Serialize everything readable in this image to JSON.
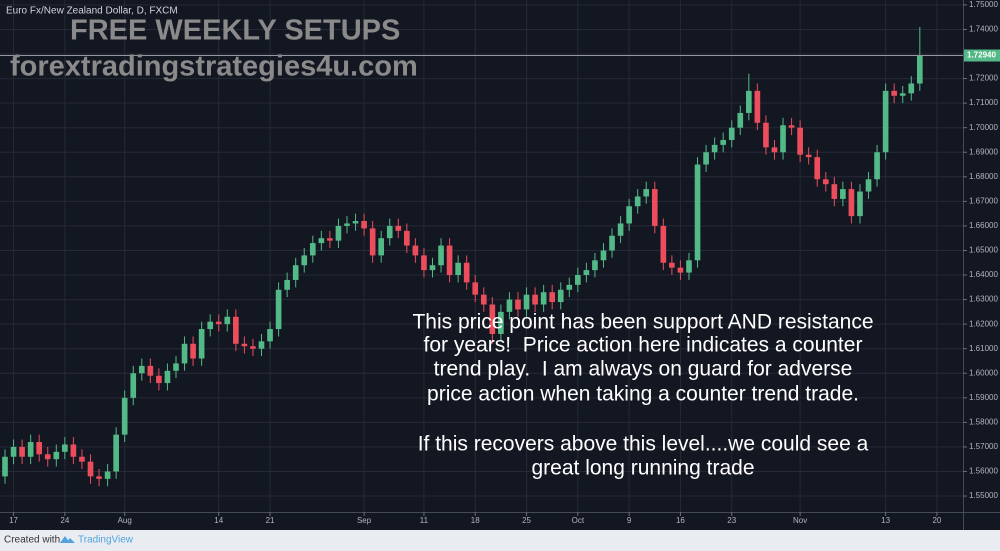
{
  "chart_data": {
    "type": "candlestick",
    "title": "Euro Fx/New Zealand Dollar, D, FXCM",
    "watermark": [
      "FREE WEEKLY SETUPS",
      "forextradingstrategies4u.com"
    ],
    "annotation": [
      "This price point has been support AND resistance",
      "for years!  Price action here indicates a counter",
      "trend play.  I am always on guard for adverse",
      "price action when taking a counter trend trade.",
      "If this recovers above this level....we could see a",
      "great long running trade"
    ],
    "up_color": "#53b987",
    "down_color": "#eb4d5c",
    "grid": true,
    "open": [
      1.558,
      1.566,
      1.57,
      1.566,
      1.572,
      1.567,
      1.565,
      1.568,
      1.571,
      1.566,
      1.564,
      1.558,
      1.557,
      1.56,
      1.575,
      1.59,
      1.6,
      1.603,
      1.599,
      1.596,
      1.601,
      1.604,
      1.612,
      1.606,
      1.618,
      1.621,
      1.62,
      1.623,
      1.612,
      1.611,
      1.61,
      1.613,
      1.618,
      1.634,
      1.638,
      1.644,
      1.648,
      1.653,
      1.655,
      1.654,
      1.66,
      1.661,
      1.662,
      1.659,
      1.648,
      1.655,
      1.66,
      1.658,
      1.652,
      1.648,
      1.642,
      1.644,
      1.652,
      1.64,
      1.645,
      1.637,
      1.632,
      1.628,
      1.616,
      1.625,
      1.63,
      1.626,
      1.632,
      1.628,
      1.633,
      1.629,
      1.634,
      1.636,
      1.64,
      1.642,
      1.646,
      1.65,
      1.656,
      1.661,
      1.668,
      1.672,
      1.675,
      1.66,
      1.645,
      1.643,
      1.641,
      1.646,
      1.685,
      1.69,
      1.693,
      1.695,
      1.7,
      1.706,
      1.715,
      1.702,
      1.692,
      1.69,
      1.701,
      1.7,
      1.689,
      1.688,
      1.679,
      1.677,
      1.671,
      1.675,
      1.664,
      1.674,
      1.679,
      1.69,
      1.715,
      1.713,
      1.714,
      1.718
    ],
    "high": [
      1.569,
      1.573,
      1.573,
      1.575,
      1.575,
      1.57,
      1.571,
      1.574,
      1.574,
      1.569,
      1.567,
      1.561,
      1.563,
      1.578,
      1.593,
      1.603,
      1.606,
      1.606,
      1.602,
      1.604,
      1.607,
      1.615,
      1.615,
      1.621,
      1.624,
      1.624,
      1.626,
      1.626,
      1.615,
      1.614,
      1.616,
      1.621,
      1.637,
      1.641,
      1.647,
      1.651,
      1.656,
      1.658,
      1.658,
      1.663,
      1.664,
      1.665,
      1.665,
      1.662,
      1.658,
      1.663,
      1.663,
      1.661,
      1.655,
      1.651,
      1.647,
      1.655,
      1.655,
      1.648,
      1.648,
      1.64,
      1.635,
      1.631,
      1.628,
      1.633,
      1.633,
      1.635,
      1.635,
      1.636,
      1.636,
      1.637,
      1.639,
      1.643,
      1.645,
      1.649,
      1.653,
      1.659,
      1.664,
      1.671,
      1.675,
      1.678,
      1.678,
      1.663,
      1.648,
      1.646,
      1.649,
      1.688,
      1.693,
      1.696,
      1.698,
      1.703,
      1.709,
      1.722,
      1.718,
      1.705,
      1.695,
      1.704,
      1.704,
      1.703,
      1.692,
      1.691,
      1.682,
      1.68,
      1.678,
      1.678,
      1.677,
      1.682,
      1.693,
      1.718,
      1.718,
      1.717,
      1.721,
      1.741
    ],
    "low": [
      1.555,
      1.563,
      1.563,
      1.563,
      1.564,
      1.562,
      1.562,
      1.565,
      1.563,
      1.561,
      1.555,
      1.554,
      1.554,
      1.557,
      1.572,
      1.587,
      1.597,
      1.596,
      1.593,
      1.593,
      1.598,
      1.601,
      1.603,
      1.603,
      1.615,
      1.617,
      1.617,
      1.609,
      1.608,
      1.607,
      1.607,
      1.61,
      1.615,
      1.631,
      1.635,
      1.641,
      1.645,
      1.65,
      1.651,
      1.651,
      1.657,
      1.658,
      1.656,
      1.645,
      1.645,
      1.652,
      1.655,
      1.649,
      1.645,
      1.639,
      1.639,
      1.641,
      1.637,
      1.637,
      1.634,
      1.629,
      1.625,
      1.612,
      1.613,
      1.622,
      1.623,
      1.623,
      1.625,
      1.625,
      1.626,
      1.626,
      1.631,
      1.633,
      1.637,
      1.639,
      1.643,
      1.647,
      1.653,
      1.658,
      1.665,
      1.669,
      1.657,
      1.642,
      1.64,
      1.638,
      1.638,
      1.643,
      1.682,
      1.687,
      1.69,
      1.692,
      1.697,
      1.703,
      1.699,
      1.689,
      1.687,
      1.687,
      1.697,
      1.686,
      1.685,
      1.676,
      1.674,
      1.668,
      1.668,
      1.661,
      1.661,
      1.671,
      1.676,
      1.687,
      1.71,
      1.71,
      1.711,
      1.715
    ],
    "close": [
      1.566,
      1.57,
      1.566,
      1.572,
      1.567,
      1.565,
      1.568,
      1.571,
      1.566,
      1.564,
      1.558,
      1.557,
      1.56,
      1.575,
      1.59,
      1.6,
      1.603,
      1.599,
      1.596,
      1.601,
      1.604,
      1.612,
      1.606,
      1.618,
      1.621,
      1.62,
      1.623,
      1.612,
      1.611,
      1.61,
      1.613,
      1.618,
      1.634,
      1.638,
      1.644,
      1.648,
      1.653,
      1.655,
      1.654,
      1.66,
      1.661,
      1.662,
      1.659,
      1.648,
      1.655,
      1.66,
      1.658,
      1.652,
      1.648,
      1.642,
      1.644,
      1.652,
      1.64,
      1.645,
      1.637,
      1.632,
      1.628,
      1.616,
      1.625,
      1.63,
      1.626,
      1.632,
      1.628,
      1.633,
      1.629,
      1.634,
      1.636,
      1.64,
      1.642,
      1.646,
      1.65,
      1.656,
      1.661,
      1.668,
      1.672,
      1.675,
      1.66,
      1.645,
      1.643,
      1.641,
      1.646,
      1.685,
      1.69,
      1.693,
      1.695,
      1.7,
      1.706,
      1.715,
      1.702,
      1.692,
      1.69,
      1.701,
      1.7,
      1.689,
      1.688,
      1.679,
      1.677,
      1.671,
      1.675,
      1.664,
      1.674,
      1.679,
      1.69,
      1.715,
      1.713,
      1.714,
      1.718,
      1.7294
    ],
    "xlim": [
      -0.585,
      112.05
    ],
    "xticks": [
      {
        "value": 1,
        "label": "17"
      },
      {
        "value": 7,
        "label": "24"
      },
      {
        "value": 14,
        "label": "Aug"
      },
      {
        "value": 25,
        "label": "14"
      },
      {
        "value": 31,
        "label": "21"
      },
      {
        "value": 42,
        "label": "Sep"
      },
      {
        "value": 49,
        "label": "11"
      },
      {
        "value": 55,
        "label": "18"
      },
      {
        "value": 61,
        "label": "25"
      },
      {
        "value": 67,
        "label": "Oct"
      },
      {
        "value": 73,
        "label": "9"
      },
      {
        "value": 79,
        "label": "16"
      },
      {
        "value": 85,
        "label": "23"
      },
      {
        "value": 93,
        "label": "Nov"
      },
      {
        "value": 103,
        "label": "13"
      },
      {
        "value": 109,
        "label": "20"
      }
    ],
    "ylim": [
      1.5435,
      1.752
    ],
    "yticks": [
      {
        "value": 1.55,
        "label": "1.55000"
      },
      {
        "value": 1.56,
        "label": "1.56000"
      },
      {
        "value": 1.57,
        "label": "1.57000"
      },
      {
        "value": 1.58,
        "label": "1.58000"
      },
      {
        "value": 1.59,
        "label": "1.59000"
      },
      {
        "value": 1.6,
        "label": "1.60000"
      },
      {
        "value": 1.61,
        "label": "1.61000"
      },
      {
        "value": 1.62,
        "label": "1.62000"
      },
      {
        "value": 1.63,
        "label": "1.63000"
      },
      {
        "value": 1.64,
        "label": "1.64000"
      },
      {
        "value": 1.65,
        "label": "1.65000"
      },
      {
        "value": 1.66,
        "label": "1.66000"
      },
      {
        "value": 1.67,
        "label": "1.67000"
      },
      {
        "value": 1.68,
        "label": "1.68000"
      },
      {
        "value": 1.69,
        "label": "1.69000"
      },
      {
        "value": 1.7,
        "label": "1.70000"
      },
      {
        "value": 1.71,
        "label": "1.71000"
      },
      {
        "value": 1.72,
        "label": "1.72000"
      },
      {
        "value": 1.73,
        "label": "1.73000"
      },
      {
        "value": 1.74,
        "label": "1.74000"
      },
      {
        "value": 1.75,
        "label": "1.75000"
      }
    ],
    "price_line": {
      "value": 1.7294,
      "label": "1.72940"
    }
  },
  "footer": {
    "created_with": "Created with",
    "brand": "TradingView"
  }
}
